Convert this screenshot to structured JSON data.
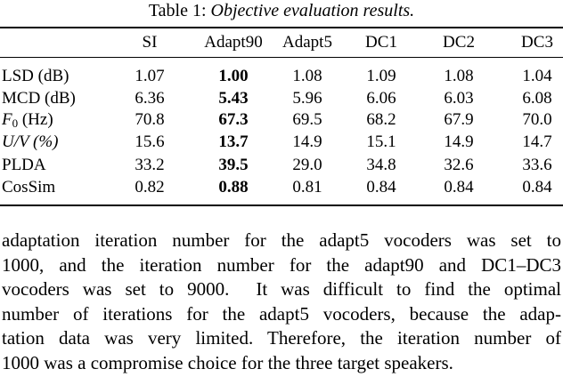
{
  "table": {
    "caption_label": "Table 1:",
    "caption_text": "Objective evaluation results.",
    "header": [
      "SI",
      "Adapt90",
      "Adapt5",
      "DC1",
      "DC2",
      "DC3"
    ],
    "bold_column": 1,
    "rows": [
      {
        "label": [
          {
            "text": "LSD (dB)"
          }
        ],
        "cells": [
          "1.07",
          "1.00",
          "1.08",
          "1.09",
          "1.08",
          "1.04"
        ]
      },
      {
        "label": [
          {
            "text": "MCD (dB)"
          }
        ],
        "cells": [
          "6.36",
          "5.43",
          "5.96",
          "6.06",
          "6.03",
          "6.08"
        ]
      },
      {
        "label": [
          {
            "text": "F",
            "style": "italic"
          },
          {
            "text": "0",
            "style": "sub"
          },
          {
            "text": " (Hz)"
          }
        ],
        "cells": [
          "70.8",
          "67.3",
          "69.5",
          "68.2",
          "67.9",
          "70.0"
        ]
      },
      {
        "label": [
          {
            "text": "U/V",
            "style": "italic"
          },
          {
            "text": " (%)",
            "style": "italic"
          }
        ],
        "cells": [
          "15.6",
          "13.7",
          "14.9",
          "15.1",
          "14.9",
          "14.7"
        ]
      },
      {
        "label": [
          {
            "text": "PLDA"
          }
        ],
        "cells": [
          "33.2",
          "39.5",
          "29.0",
          "34.8",
          "32.6",
          "33.6"
        ]
      },
      {
        "label": [
          {
            "text": "CosSim"
          }
        ],
        "cells": [
          "0.82",
          "0.88",
          "0.81",
          "0.84",
          "0.84",
          "0.84"
        ]
      }
    ]
  },
  "paragraph": {
    "lines": [
      "adaptation iteration number for the adapt5 vocoders was set to",
      "1000, and the iteration number for the adapt90 and DC1–DC3",
      "vocoders was set to 9000.  It was difficult to find the optimal",
      "number of iterations for the adapt5 vocoders, because the adap-",
      "tation data was very limited. Therefore, the iteration number of",
      "1000 was a compromise choice for the three target speakers."
    ]
  }
}
